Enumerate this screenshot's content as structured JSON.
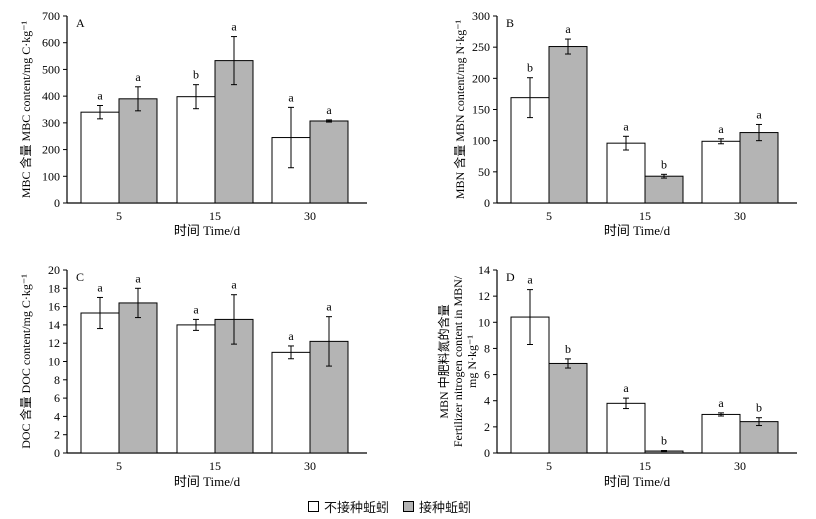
{
  "colors": {
    "not_inoculated": "#ffffff",
    "inoculated": "#b4b4b4",
    "axis": "#000000"
  },
  "legend": {
    "not_inoculated": "不接种蚯蚓",
    "inoculated": "接种蚯蚓"
  },
  "chart_data": [
    {
      "type": "bar",
      "panel": "A",
      "xlabel": "时间 Time/d",
      "ylabel": "MBC 含量 MBC content/mg C·kg⁻¹",
      "categories": [
        "5",
        "15",
        "30"
      ],
      "ylim": [
        0,
        700
      ],
      "yticks": [
        "0",
        "100",
        "200",
        "300",
        "400",
        "500",
        "600",
        "700"
      ],
      "series": [
        {
          "key": "not_inoculated",
          "values": [
            340,
            398,
            245
          ],
          "errors": [
            25,
            45,
            113
          ],
          "letters": [
            "a",
            "b",
            "a"
          ]
        },
        {
          "key": "inoculated",
          "values": [
            390,
            533,
            307
          ],
          "errors": [
            45,
            90,
            4
          ],
          "letters": [
            "a",
            "a",
            "a"
          ]
        }
      ]
    },
    {
      "type": "bar",
      "panel": "B",
      "xlabel": "时间 Time/d",
      "ylabel": "MBN 含量 MBN content/mg N·kg⁻¹",
      "categories": [
        "5",
        "15",
        "30"
      ],
      "ylim": [
        0,
        300
      ],
      "yticks": [
        "0",
        "50",
        "100",
        "150",
        "200",
        "250",
        "300"
      ],
      "series": [
        {
          "key": "not_inoculated",
          "values": [
            169,
            96,
            99
          ],
          "errors": [
            32,
            11,
            4
          ],
          "letters": [
            "b",
            "a",
            "a"
          ]
        },
        {
          "key": "inoculated",
          "values": [
            251,
            43,
            113
          ],
          "errors": [
            12,
            3,
            13
          ],
          "letters": [
            "a",
            "b",
            "a"
          ]
        }
      ]
    },
    {
      "type": "bar",
      "panel": "C",
      "xlabel": "时间 Time/d",
      "ylabel": "DOC 含量 DOC content/mg C·kg⁻¹",
      "categories": [
        "5",
        "15",
        "30"
      ],
      "ylim": [
        0,
        20
      ],
      "yticks": [
        "0",
        "2",
        "4",
        "6",
        "8",
        "10",
        "12",
        "14",
        "16",
        "18",
        "20"
      ],
      "series": [
        {
          "key": "not_inoculated",
          "values": [
            15.3,
            14.0,
            11.0
          ],
          "errors": [
            1.7,
            0.6,
            0.7
          ],
          "letters": [
            "a",
            "a",
            "a"
          ]
        },
        {
          "key": "inoculated",
          "values": [
            16.4,
            14.6,
            12.2
          ],
          "errors": [
            1.6,
            2.7,
            2.7
          ],
          "letters": [
            "a",
            "a",
            "a"
          ]
        }
      ]
    },
    {
      "type": "bar",
      "panel": "D",
      "xlabel": "时间 Time/d",
      "ylabel": "MBN 中肥料氮的含量 Fertilizer nitrogen content in MBN/ mg N·kg⁻¹",
      "ylabel_lines": [
        "MBN 中肥料氮的含量",
        "Fertilizer nitrogen content in MBN/",
        "mg N·kg⁻¹"
      ],
      "categories": [
        "5",
        "15",
        "30"
      ],
      "ylim": [
        0,
        14
      ],
      "yticks": [
        "0",
        "2",
        "4",
        "6",
        "8",
        "10",
        "12",
        "14"
      ],
      "series": [
        {
          "key": "not_inoculated",
          "values": [
            10.4,
            3.8,
            2.95
          ],
          "errors": [
            2.1,
            0.4,
            0.12
          ],
          "letters": [
            "a",
            "a",
            "a"
          ]
        },
        {
          "key": "inoculated",
          "values": [
            6.85,
            0.15,
            2.4
          ],
          "errors": [
            0.35,
            0.04,
            0.3
          ],
          "letters": [
            "b",
            "b",
            "b"
          ]
        }
      ]
    }
  ]
}
